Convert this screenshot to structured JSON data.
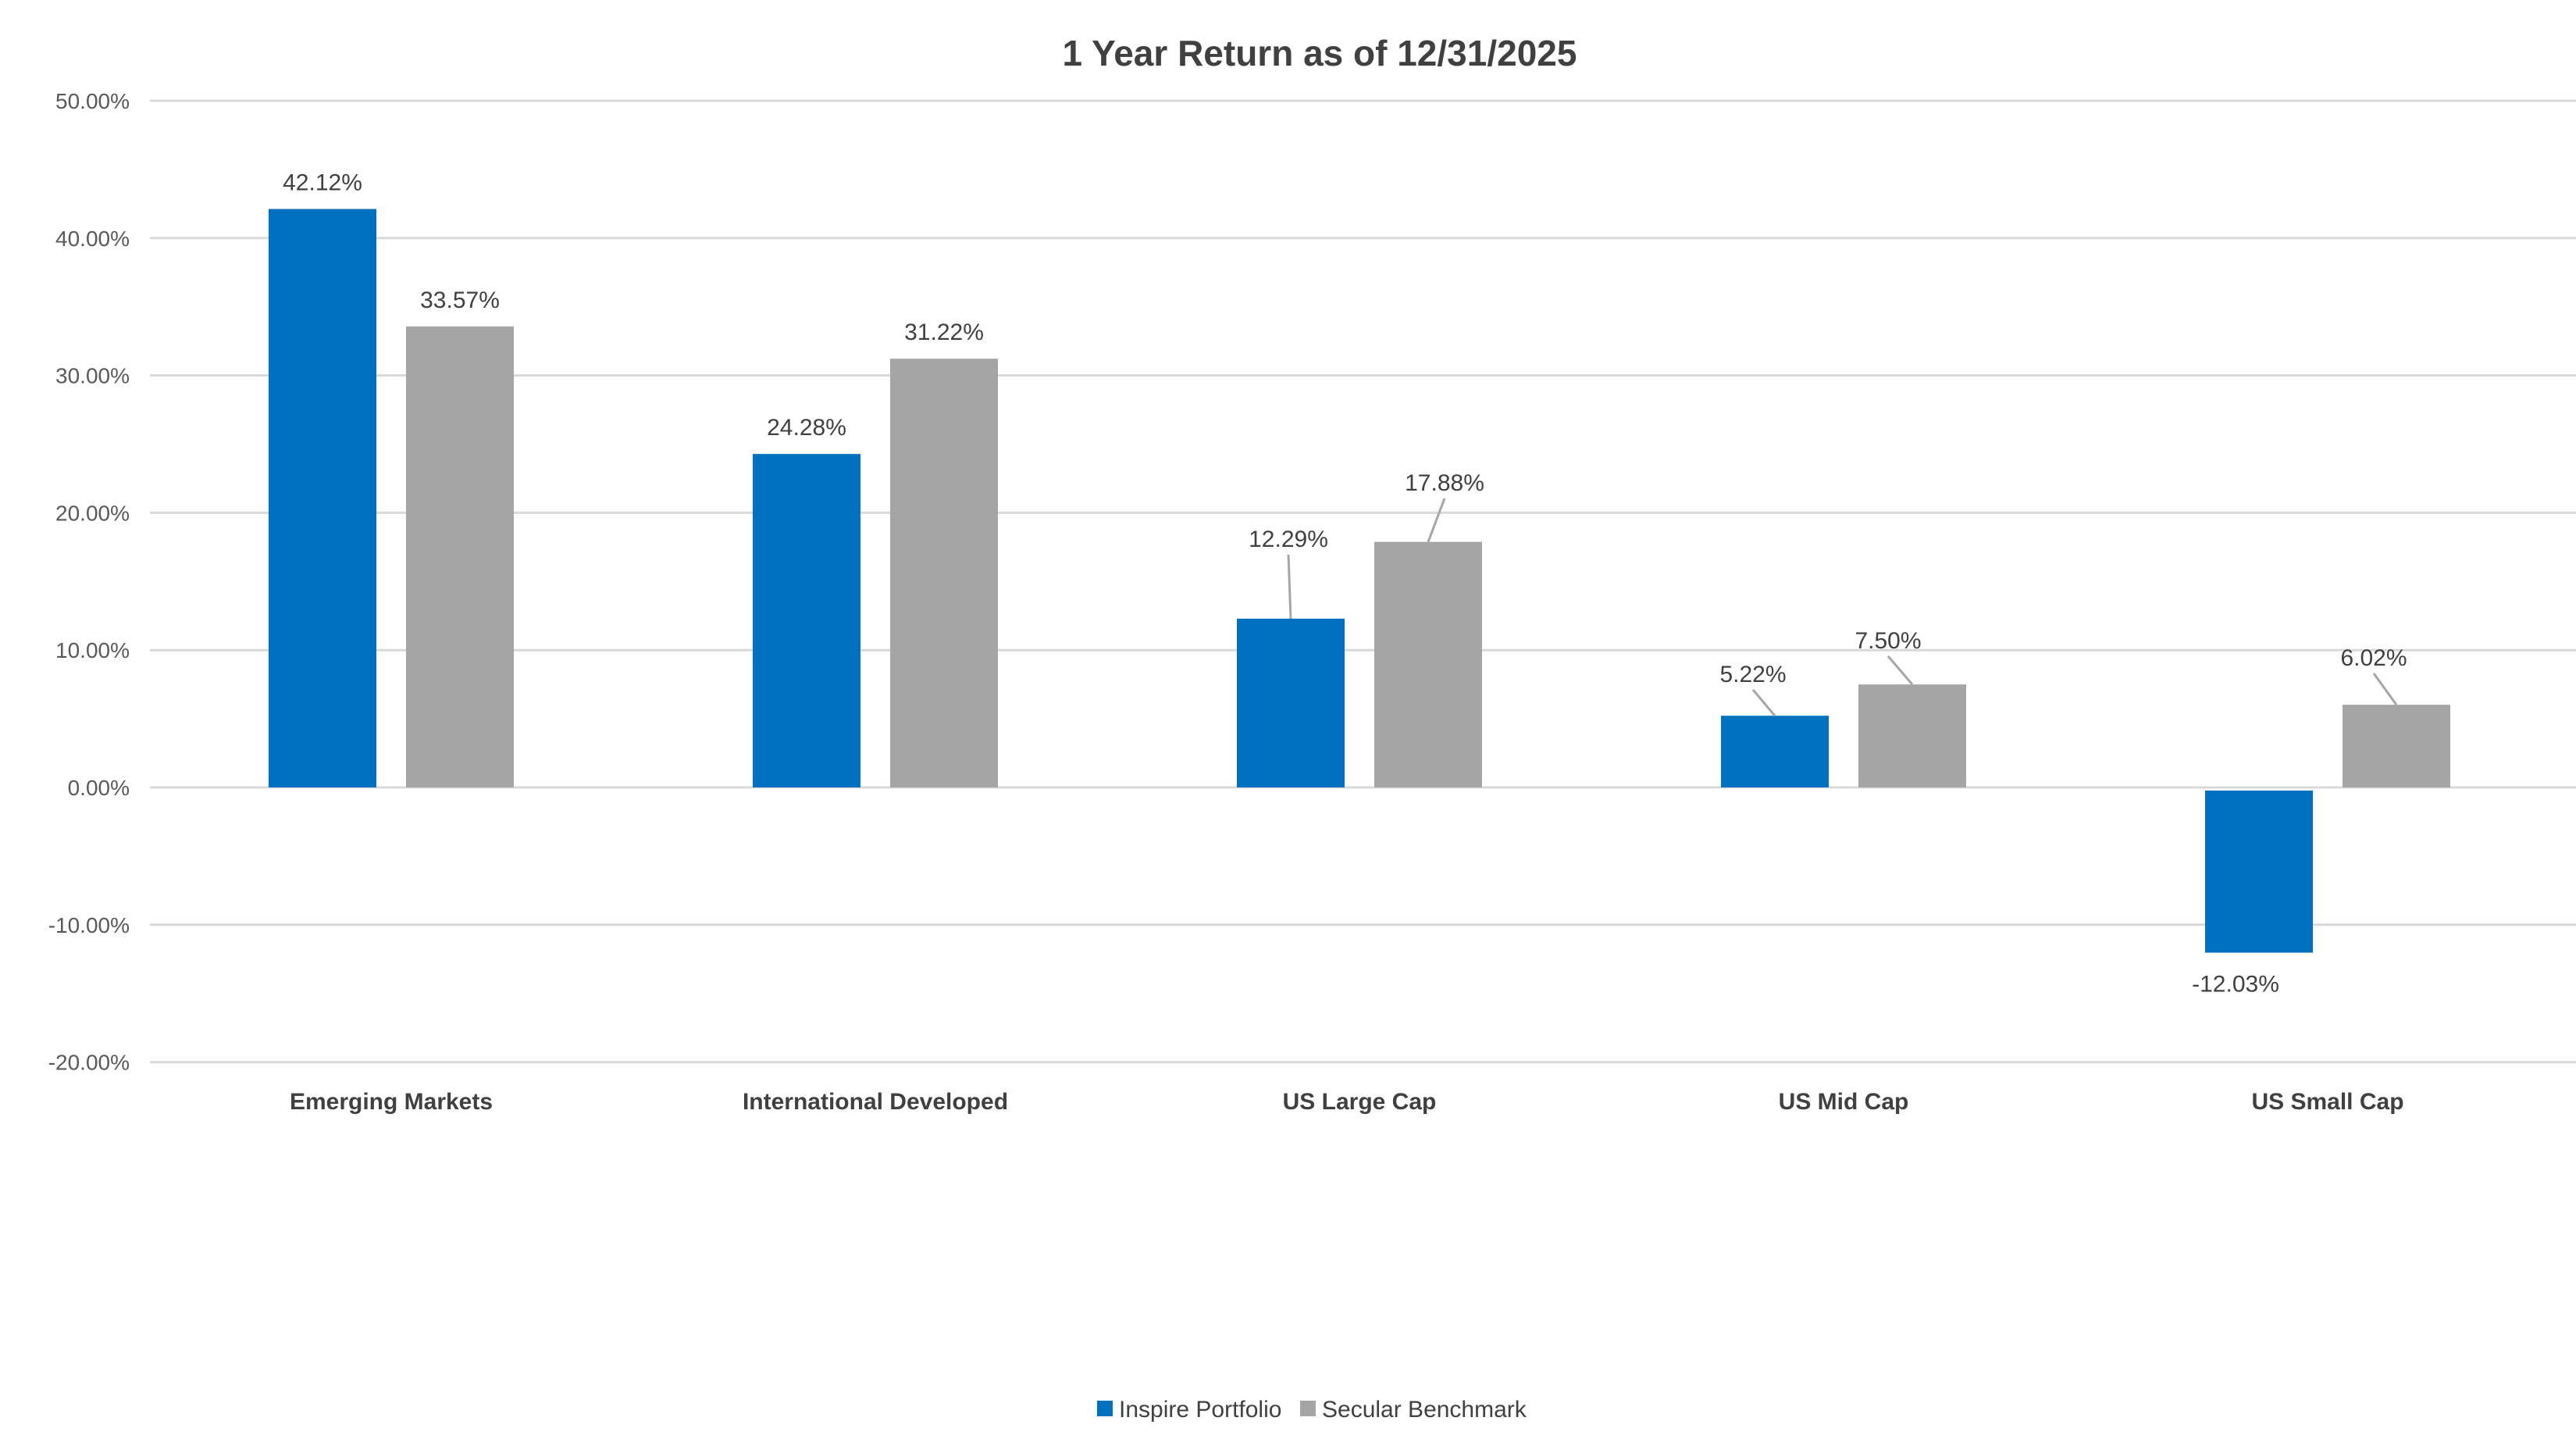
{
  "chart_data": {
    "type": "bar",
    "title": "1 Year Return as of 12/31/2025",
    "xlabel": "",
    "ylabel": "",
    "categories": [
      "Emerging Markets",
      "International Developed",
      "US Large Cap",
      "US Mid Cap",
      "US Small Cap"
    ],
    "series": [
      {
        "name": "Inspire Portfolio",
        "color": "#0070C0",
        "values": [
          42.12,
          24.28,
          12.29,
          5.22,
          -12.03
        ],
        "labels": [
          "42.12%",
          "24.28%",
          "12.29%",
          "5.22%",
          "-12.03%"
        ]
      },
      {
        "name": "Secular Benchmark",
        "color": "#A5A5A5",
        "values": [
          33.57,
          31.22,
          17.88,
          7.5,
          6.02
        ],
        "labels": [
          "33.57%",
          "31.22%",
          "17.88%",
          "7.50%",
          "6.02%"
        ]
      }
    ],
    "ylim": [
      -20,
      50
    ],
    "yticks": [
      50,
      40,
      30,
      20,
      10,
      0,
      -10,
      -20
    ],
    "ytick_labels": [
      "50.00%",
      "40.00%",
      "30.00%",
      "20.00%",
      "10.00%",
      "0.00%",
      "-10.00%",
      "-20.00%"
    ],
    "grid": true,
    "legend_position": "bottom-center",
    "colors": {
      "gridline": "#D9D9D9",
      "text": "#404040",
      "leader_line": "#A6A6A6"
    }
  }
}
